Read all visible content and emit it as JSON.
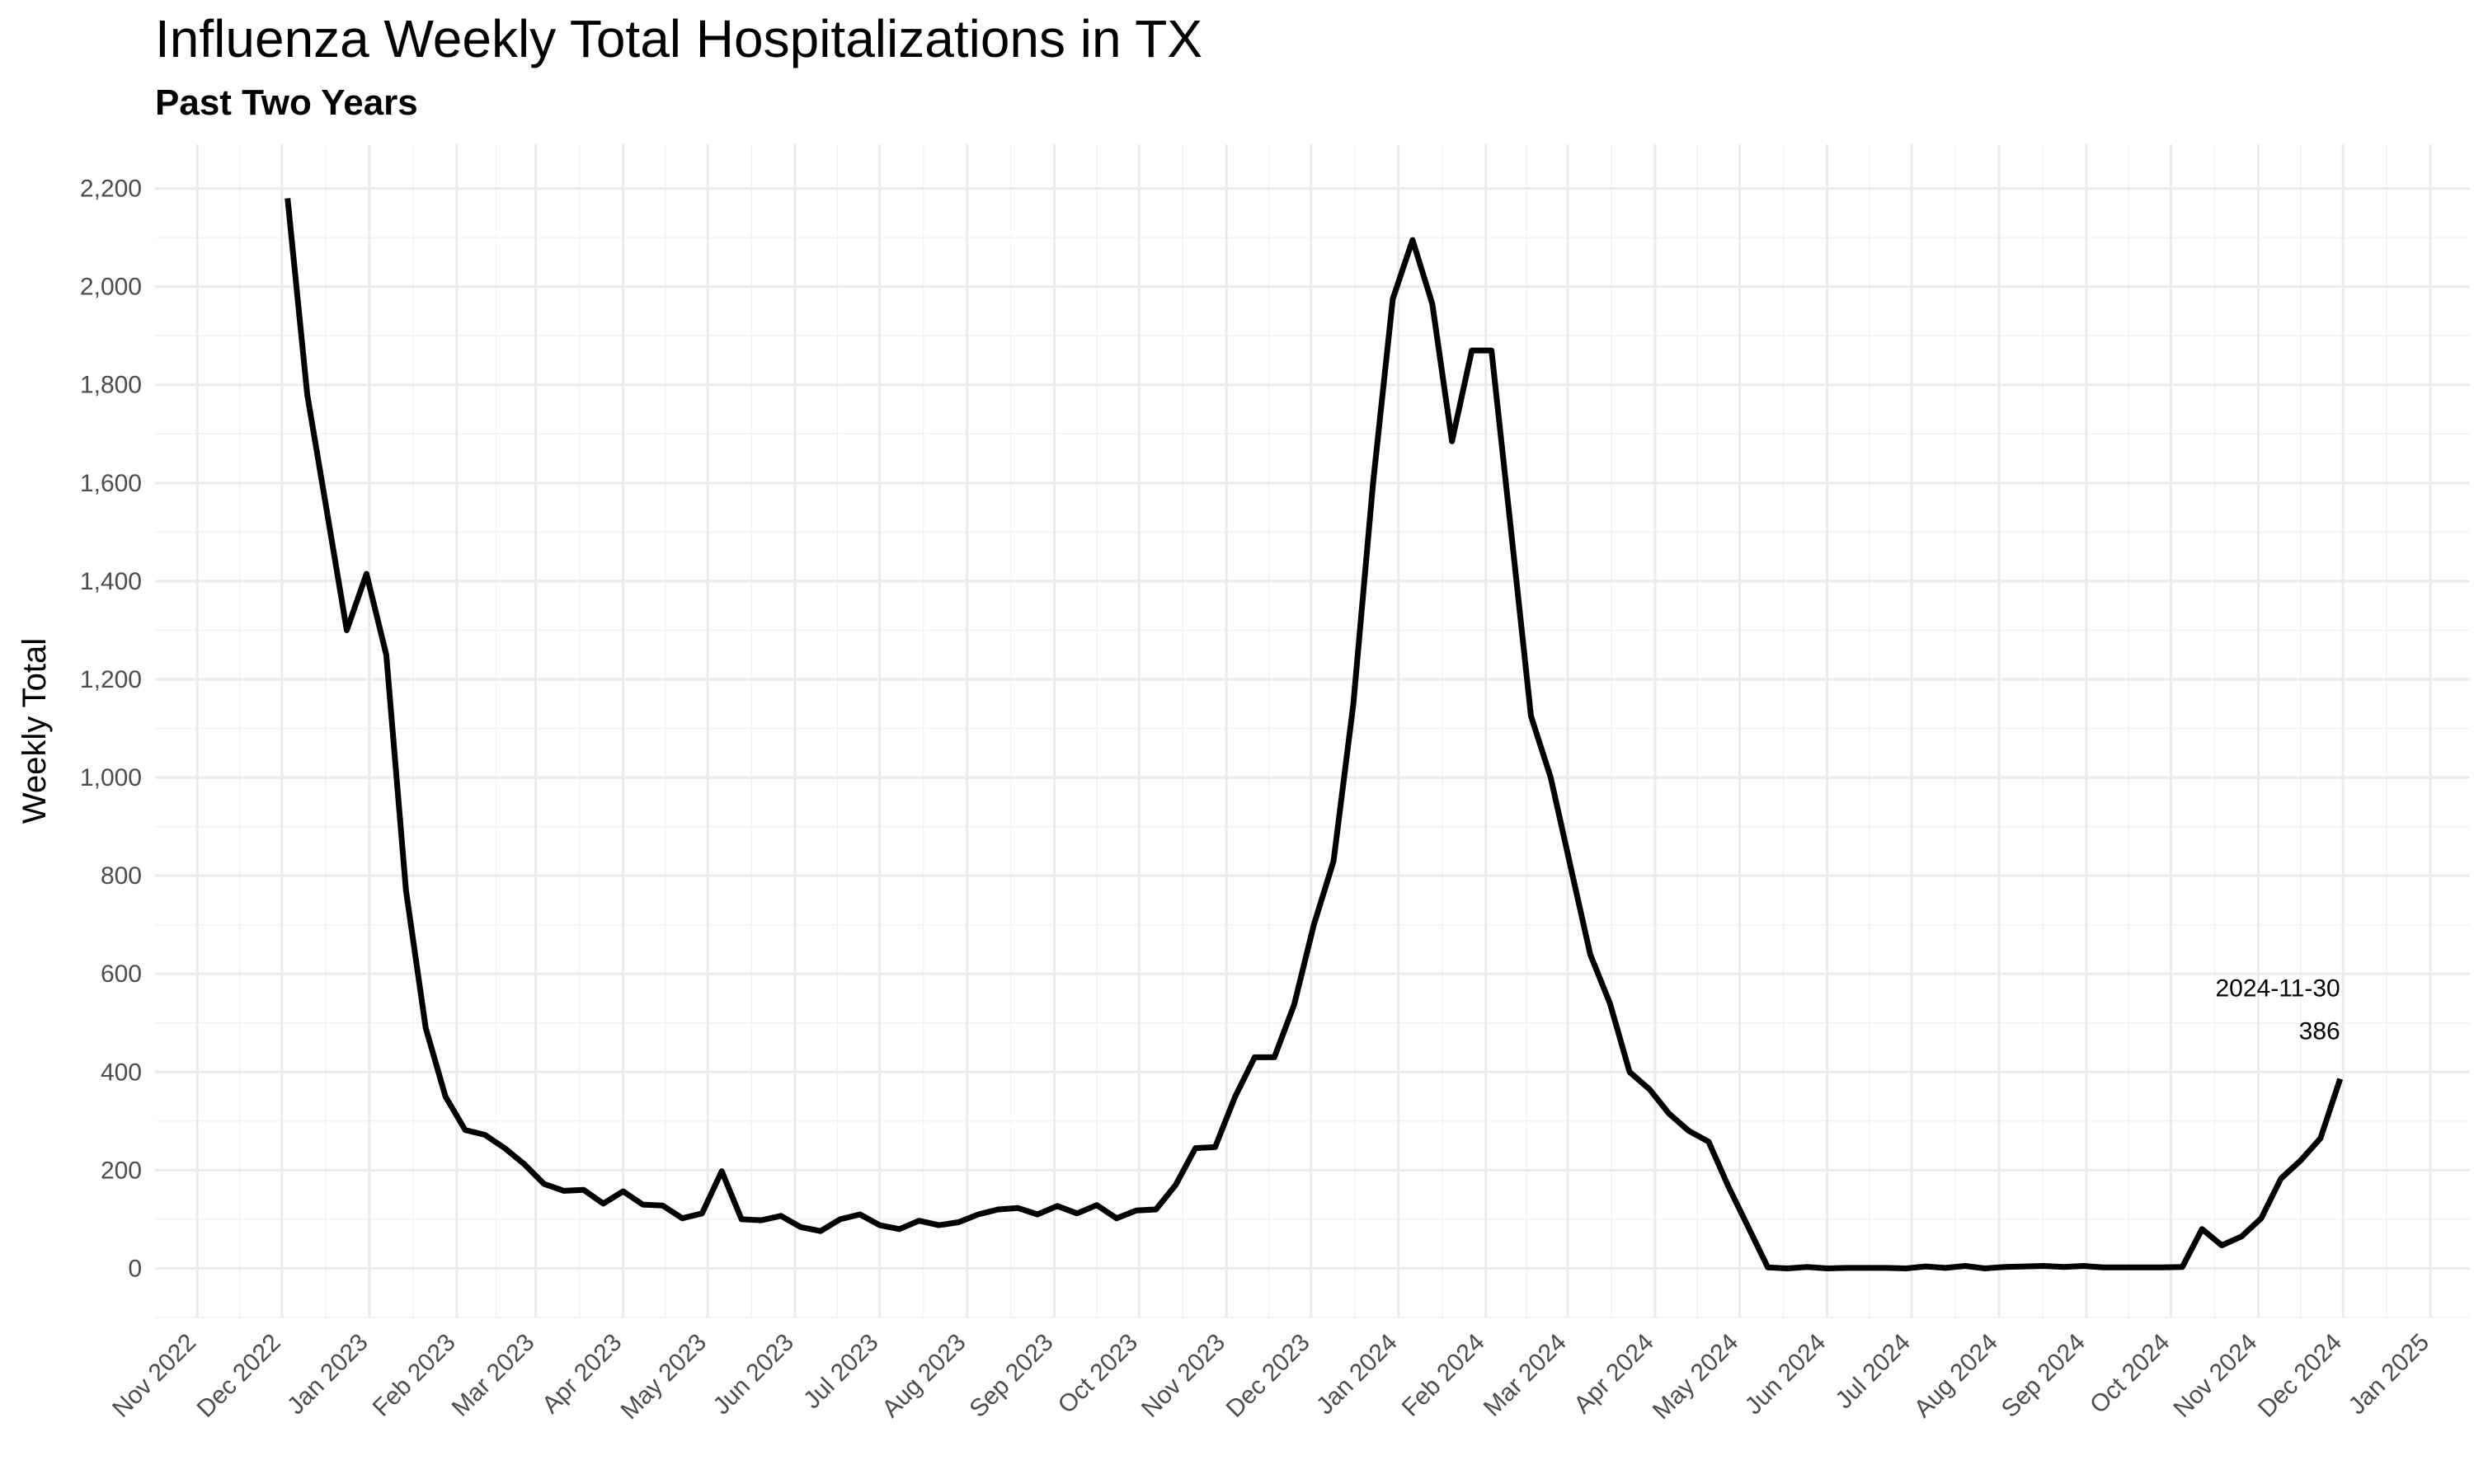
{
  "chart_data": {
    "type": "line",
    "title": "Influenza Weekly Total Hospitalizations in TX",
    "subtitle": "Past Two Years",
    "xlabel": "",
    "ylabel": "Weekly Total",
    "xlim": [
      "2022-10-17",
      "2025-01-15"
    ],
    "ylim": [
      -100,
      2290
    ],
    "y_ticks": [
      0,
      200,
      400,
      600,
      800,
      1000,
      1200,
      1400,
      1600,
      1800,
      2000,
      2200
    ],
    "y_tick_labels": [
      "0",
      "200",
      "400",
      "600",
      "800",
      "1,000",
      "1,200",
      "1,400",
      "1,600",
      "1,800",
      "2,000",
      "2,200"
    ],
    "x_ticks": [
      "2022-11-01",
      "2022-12-01",
      "2023-01-01",
      "2023-02-01",
      "2023-03-01",
      "2023-04-01",
      "2023-05-01",
      "2023-06-01",
      "2023-07-01",
      "2023-08-01",
      "2023-09-01",
      "2023-10-01",
      "2023-11-01",
      "2023-12-01",
      "2024-01-01",
      "2024-02-01",
      "2024-03-01",
      "2024-04-01",
      "2024-05-01",
      "2024-06-01",
      "2024-07-01",
      "2024-08-01",
      "2024-09-01",
      "2024-10-01",
      "2024-11-01",
      "2024-12-01",
      "2025-01-01"
    ],
    "x_tick_labels": [
      "Nov 2022",
      "Dec 2022",
      "Jan 2023",
      "Feb 2023",
      "Mar 2023",
      "Apr 2023",
      "May 2023",
      "Jun 2023",
      "Jul 2023",
      "Aug 2023",
      "Sep 2023",
      "Oct 2023",
      "Nov 2023",
      "Dec 2023",
      "Jan 2024",
      "Feb 2024",
      "Mar 2024",
      "Apr 2024",
      "May 2024",
      "Jun 2024",
      "Jul 2024",
      "Aug 2024",
      "Sep 2024",
      "Oct 2024",
      "Nov 2024",
      "Dec 2024",
      "Jan 2025"
    ],
    "grid": true,
    "legend": "none",
    "line_color": "#000000",
    "annotation": {
      "date": "2024-11-30",
      "value": 386,
      "date_label": "2024-11-30",
      "value_label": "386"
    },
    "series": [
      {
        "x": [
          "2022-12-03",
          "2022-12-10",
          "2022-12-17",
          "2022-12-24",
          "2022-12-31",
          "2023-01-07",
          "2023-01-14",
          "2023-01-21",
          "2023-01-28",
          "2023-02-04",
          "2023-02-11",
          "2023-02-18",
          "2023-02-25",
          "2023-03-04",
          "2023-03-11",
          "2023-03-18",
          "2023-03-25",
          "2023-04-01",
          "2023-04-08",
          "2023-04-15",
          "2023-04-22",
          "2023-04-29",
          "2023-05-06",
          "2023-05-13",
          "2023-05-20",
          "2023-05-27",
          "2023-06-03",
          "2023-06-10",
          "2023-06-17",
          "2023-06-24",
          "2023-07-01",
          "2023-07-08",
          "2023-07-15",
          "2023-07-22",
          "2023-07-29",
          "2023-08-05",
          "2023-08-12",
          "2023-08-19",
          "2023-08-26",
          "2023-09-02",
          "2023-09-09",
          "2023-09-16",
          "2023-09-23",
          "2023-09-30",
          "2023-10-07",
          "2023-10-14",
          "2023-10-21",
          "2023-10-28",
          "2023-11-04",
          "2023-11-11",
          "2023-11-18",
          "2023-11-25",
          "2023-12-02",
          "2023-12-09",
          "2023-12-16",
          "2023-12-23",
          "2023-12-30",
          "2024-01-06",
          "2024-01-13",
          "2024-01-20",
          "2024-01-27",
          "2024-02-03",
          "2024-02-10",
          "2024-02-17",
          "2024-02-24",
          "2024-03-02",
          "2024-03-09",
          "2024-03-16",
          "2024-03-23",
          "2024-03-30",
          "2024-04-06",
          "2024-04-13",
          "2024-04-20",
          "2024-04-27",
          "2024-05-04",
          "2024-05-11",
          "2024-05-18",
          "2024-05-25",
          "2024-06-01",
          "2024-06-08",
          "2024-06-15",
          "2024-06-22",
          "2024-06-29",
          "2024-07-06",
          "2024-07-13",
          "2024-07-20",
          "2024-07-27",
          "2024-08-03",
          "2024-08-10",
          "2024-08-17",
          "2024-08-24",
          "2024-08-31",
          "2024-09-07",
          "2024-09-14",
          "2024-09-21",
          "2024-09-28",
          "2024-10-05",
          "2024-10-12",
          "2024-10-19",
          "2024-10-26",
          "2024-11-02",
          "2024-11-09",
          "2024-11-16",
          "2024-11-23",
          "2024-11-30"
        ],
        "values": [
          2180,
          1780,
          1540,
          1300,
          1415,
          1250,
          770,
          490,
          350,
          282,
          272,
          245,
          212,
          172,
          158,
          160,
          132,
          157,
          130,
          128,
          102,
          112,
          198,
          100,
          98,
          107,
          84,
          76,
          100,
          110,
          88,
          80,
          97,
          88,
          94,
          110,
          120,
          123,
          110,
          127,
          112,
          129,
          102,
          118,
          120,
          170,
          245,
          247,
          349,
          430,
          430,
          537,
          700,
          830,
          1150,
          1600,
          1975,
          2095,
          1965,
          1685,
          1870,
          1870,
          1500,
          1125,
          1000,
          820,
          640,
          540,
          400,
          365,
          315,
          280,
          258,
          167,
          85,
          2,
          0,
          3,
          0,
          1,
          1,
          1,
          0,
          4,
          1,
          5,
          0,
          3,
          4,
          5,
          3,
          5,
          2,
          2,
          2,
          2,
          3,
          80,
          47,
          65,
          102,
          183,
          220,
          265,
          386
        ]
      }
    ]
  }
}
